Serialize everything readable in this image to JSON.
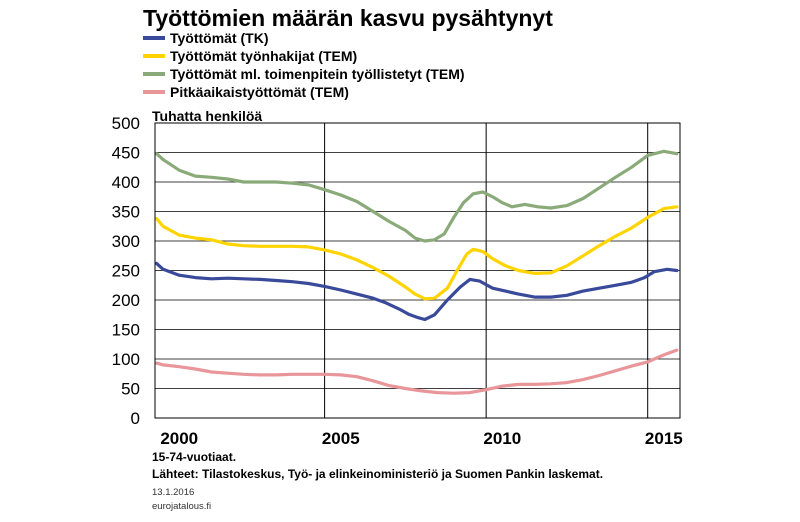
{
  "chart_data": {
    "type": "line",
    "title": "Työttömien määrän kasvu pysähtynyt",
    "unit_label": "Tuhatta henkilöä",
    "xlabel": "",
    "ylabel": "",
    "xlim": [
      1999.75,
      2016.0
    ],
    "ylim": [
      0,
      500
    ],
    "y_ticks": [
      "0",
      "50",
      "100",
      "150",
      "200",
      "250",
      "300",
      "350",
      "400",
      "450",
      "500"
    ],
    "x_ticks": [
      {
        "label": "2000",
        "value": 2000.5
      },
      {
        "label": "2005",
        "value": 2005.5
      },
      {
        "label": "2010",
        "value": 2010.5
      },
      {
        "label": "2015",
        "value": 2015.5
      }
    ],
    "vertical_gridlines": [
      2005.0,
      2010.0,
      2015.0
    ],
    "grid": true,
    "legend_placement": "top-left",
    "series": [
      {
        "name": "Työttömät (TK)",
        "color": "#3a4a9a",
        "x": [
          1999.8,
          2000.0,
          2000.5,
          2001.0,
          2001.5,
          2002.0,
          2002.5,
          2003.0,
          2003.5,
          2004.0,
          2004.5,
          2005.0,
          2005.5,
          2006.0,
          2006.5,
          2006.9,
          2007.3,
          2007.6,
          2007.9,
          2008.1,
          2008.4,
          2008.8,
          2009.2,
          2009.5,
          2009.8,
          2010.2,
          2010.6,
          2011.0,
          2011.5,
          2012.0,
          2012.5,
          2013.0,
          2013.5,
          2014.0,
          2014.5,
          2014.9,
          2015.2,
          2015.6,
          2015.9
        ],
        "values": [
          262,
          252,
          242,
          238,
          236,
          237,
          236,
          235,
          233,
          231,
          228,
          223,
          217,
          210,
          203,
          195,
          185,
          176,
          170,
          167,
          175,
          200,
          222,
          235,
          232,
          220,
          215,
          210,
          205,
          205,
          208,
          215,
          220,
          225,
          230,
          238,
          248,
          252,
          250
        ]
      },
      {
        "name": "Työttömät työnhakijat (TEM)",
        "color": "#ffd400",
        "x": [
          1999.8,
          2000.0,
          2000.5,
          2001.0,
          2001.5,
          2002.0,
          2002.5,
          2003.0,
          2003.5,
          2004.0,
          2004.5,
          2005.0,
          2005.5,
          2006.0,
          2006.5,
          2007.0,
          2007.5,
          2007.8,
          2008.1,
          2008.4,
          2008.8,
          2009.1,
          2009.4,
          2009.6,
          2009.9,
          2010.2,
          2010.6,
          2011.0,
          2011.5,
          2012.0,
          2012.5,
          2013.0,
          2013.5,
          2014.0,
          2014.5,
          2015.0,
          2015.5,
          2015.9
        ],
        "values": [
          338,
          325,
          310,
          305,
          302,
          295,
          292,
          291,
          291,
          291,
          290,
          285,
          278,
          268,
          255,
          240,
          222,
          210,
          202,
          203,
          220,
          250,
          278,
          286,
          282,
          270,
          258,
          250,
          245,
          246,
          258,
          275,
          292,
          308,
          322,
          340,
          355,
          358
        ]
      },
      {
        "name": "Työttömät ml. toimenpitein työllistetyt (TEM)",
        "color": "#8aaa7a",
        "x": [
          1999.8,
          2000.0,
          2000.5,
          2001.0,
          2001.5,
          2002.0,
          2002.5,
          2003.0,
          2003.5,
          2004.0,
          2004.5,
          2005.0,
          2005.5,
          2006.0,
          2006.5,
          2007.0,
          2007.5,
          2007.8,
          2008.1,
          2008.4,
          2008.7,
          2009.0,
          2009.3,
          2009.6,
          2009.9,
          2010.2,
          2010.5,
          2010.8,
          2011.2,
          2011.6,
          2012.0,
          2012.5,
          2013.0,
          2013.5,
          2014.0,
          2014.5,
          2015.0,
          2015.5,
          2015.9
        ],
        "values": [
          448,
          438,
          420,
          410,
          408,
          405,
          400,
          400,
          400,
          398,
          395,
          387,
          378,
          367,
          350,
          333,
          318,
          305,
          300,
          302,
          312,
          340,
          365,
          380,
          383,
          375,
          365,
          358,
          362,
          358,
          356,
          360,
          372,
          390,
          408,
          425,
          445,
          452,
          448
        ]
      },
      {
        "name": "Pitkäaikaistyöttömät (TEM)",
        "color": "#e8969a",
        "x": [
          1999.8,
          2000.0,
          2000.5,
          2001.0,
          2001.5,
          2002.0,
          2002.5,
          2003.0,
          2003.5,
          2004.0,
          2004.5,
          2005.0,
          2005.5,
          2006.0,
          2006.5,
          2007.0,
          2007.5,
          2008.0,
          2008.5,
          2009.0,
          2009.5,
          2010.0,
          2010.5,
          2011.0,
          2011.5,
          2012.0,
          2012.5,
          2013.0,
          2013.5,
          2014.0,
          2014.5,
          2015.0,
          2015.5,
          2015.9
        ],
        "values": [
          93,
          90,
          87,
          83,
          78,
          76,
          74,
          73,
          73,
          74,
          74,
          74,
          73,
          70,
          63,
          55,
          50,
          46,
          43,
          42,
          43,
          48,
          54,
          57,
          57,
          58,
          60,
          65,
          72,
          80,
          88,
          95,
          107,
          115
        ]
      }
    ]
  },
  "notes": {
    "age_note": "15-74-vuotiaat.",
    "sources": "Lähteet: Tilastokeskus, Työ- ja elinkeinoministeriö ja Suomen Pankin laskemat.",
    "date": "13.1.2016",
    "site": "eurojatalous.fi"
  }
}
